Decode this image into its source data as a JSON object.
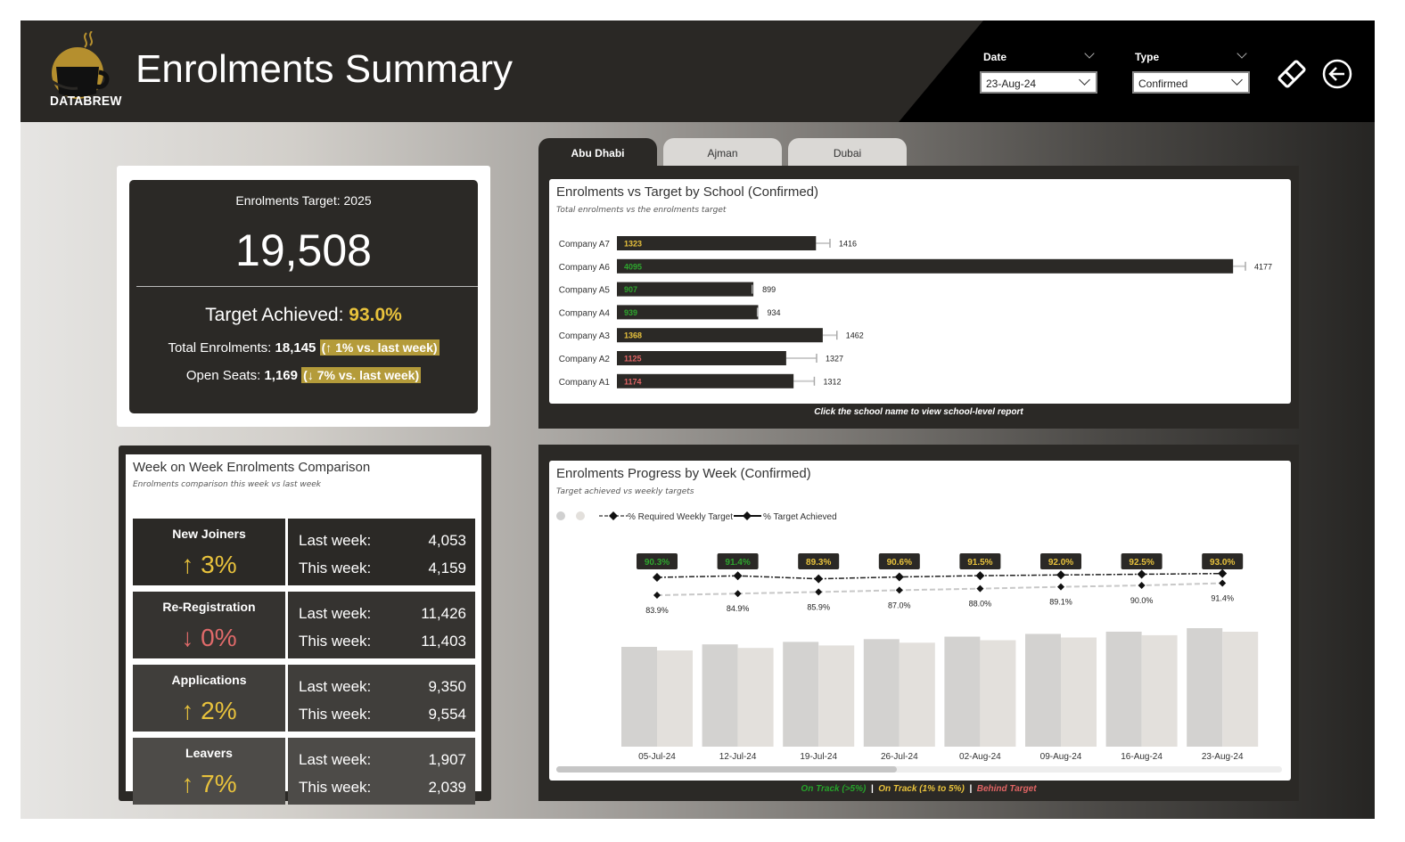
{
  "header": {
    "title": "Enrolments Summary",
    "logo_text": "DATABREW",
    "date_filter": {
      "label": "Date",
      "value": "23-Aug-24"
    },
    "type_filter": {
      "label": "Type",
      "value": "Confirmed"
    }
  },
  "kpi": {
    "target_label": "Enrolments Target: 2025",
    "target_value": "19,508",
    "achieved_label": "Target Achieved:",
    "achieved_value": "93.0%",
    "total_label": "Total Enrolments:",
    "total_value": "18,145",
    "total_change": "(↑ 1% vs. last week)",
    "open_label": "Open Seats:",
    "open_value": "1,169",
    "open_change": "(↓ 7% vs. last week)"
  },
  "wow": {
    "title": "Week on Week Enrolments Comparison",
    "subtitle": "Enrolments comparison this week vs last week",
    "last_label": "Last week:",
    "this_label": "This week:",
    "rows": [
      {
        "name": "New Joiners",
        "change": "↑ 3%",
        "last": "4,053",
        "this": "4,159",
        "color": "#e8c23c",
        "bg": "#2b2926"
      },
      {
        "name": "Re-Registration",
        "change": "↓ 0%",
        "last": "11,426",
        "this": "11,403",
        "color": "#e06a6a",
        "bg": "#353330"
      },
      {
        "name": "Applications",
        "change": "↑ 2%",
        "last": "9,350",
        "this": "9,554",
        "color": "#e8c23c",
        "bg": "#403e3b"
      },
      {
        "name": "Leavers",
        "change": "↑ 7%",
        "last": "1,907",
        "this": "2,039",
        "color": "#e8c23c",
        "bg": "#4d4b48"
      }
    ]
  },
  "tabs": [
    {
      "label": "Abu Dhabi",
      "active": true
    },
    {
      "label": "Ajman",
      "active": false
    },
    {
      "label": "Dubai",
      "active": false
    }
  ],
  "school_chart": {
    "title": "Enrolments vs Target by School (Confirmed)",
    "subtitle": "Total enrolments vs the enrolments target",
    "note": "Click the school name to view school-level report"
  },
  "progress_chart": {
    "title": "Enrolments Progress by Week (Confirmed)",
    "subtitle": "Target achieved vs weekly targets",
    "legend_required": "% Required Weekly Target",
    "legend_achieved": "% Target Achieved"
  },
  "status_legend": {
    "on_track_high": "On Track (>5%)",
    "on_track_low": "On Track (1% to 5%)",
    "behind": "Behind Target",
    "separator": "|"
  },
  "chart_data": [
    {
      "type": "bar",
      "title": "Enrolments vs Target by School (Confirmed)",
      "categories": [
        "Company A7",
        "Company A6",
        "Company A5",
        "Company A4",
        "Company A3",
        "Company A2",
        "Company A1"
      ],
      "series": [
        {
          "name": "Enrolments",
          "values": [
            1323,
            4095,
            907,
            939,
            1368,
            1125,
            1174
          ]
        },
        {
          "name": "Target",
          "values": [
            1416,
            4177,
            899,
            934,
            1462,
            1327,
            1312
          ]
        }
      ],
      "label_colors": [
        "#e8c23c",
        "#2ea52e",
        "#2ea52e",
        "#2ea52e",
        "#e8c23c",
        "#e06464",
        "#e06464"
      ],
      "xlim": [
        0,
        4177
      ]
    },
    {
      "type": "bar",
      "title": "Enrolments Progress by Week (Confirmed)",
      "categories": [
        "05-Jul-24",
        "12-Jul-24",
        "19-Jul-24",
        "26-Jul-24",
        "02-Aug-24",
        "09-Aug-24",
        "16-Aug-24",
        "23-Aug-24"
      ],
      "series": [
        {
          "name": "% Target Achieved",
          "values": [
            90.3,
            91.4,
            89.3,
            90.6,
            91.5,
            92.0,
            92.5,
            93.0
          ]
        },
        {
          "name": "% Required Weekly Target",
          "values": [
            83.9,
            84.9,
            85.9,
            87.0,
            88.0,
            89.1,
            90.0,
            91.4
          ]
        }
      ],
      "achieved_labels": [
        "90.3%",
        "91.4%",
        "89.3%",
        "90.6%",
        "91.5%",
        "92.0%",
        "92.5%",
        "93.0%"
      ],
      "required_labels": [
        "83.9%",
        "84.9%",
        "85.9%",
        "87.0%",
        "88.0%",
        "89.1%",
        "90.0%",
        "91.4%"
      ],
      "achieved_colors": [
        "#2ea52e",
        "#2ea52e",
        "#e8c23c",
        "#e8c23c",
        "#e8c23c",
        "#e8c23c",
        "#e8c23c",
        "#e8c23c"
      ]
    }
  ]
}
